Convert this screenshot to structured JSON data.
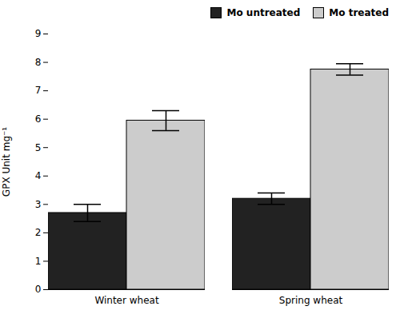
{
  "chart_data": {
    "type": "bar",
    "categories": [
      "Winter wheat",
      "Spring wheat"
    ],
    "series": [
      {
        "name": "Mo untreated",
        "color": "#222222",
        "values": [
          2.7,
          3.2
        ],
        "errors": [
          0.3,
          0.2
        ]
      },
      {
        "name": "Mo treated",
        "color": "#cccccc",
        "values": [
          5.95,
          7.75
        ],
        "errors": [
          0.35,
          0.2
        ]
      }
    ],
    "ylabel": "GPX Unit mg⁻¹",
    "ylim": [
      0,
      9
    ],
    "yticks": [
      0,
      1,
      2,
      3,
      4,
      5,
      6,
      7,
      8,
      9
    ],
    "legend": "upper right",
    "grid": false
  }
}
